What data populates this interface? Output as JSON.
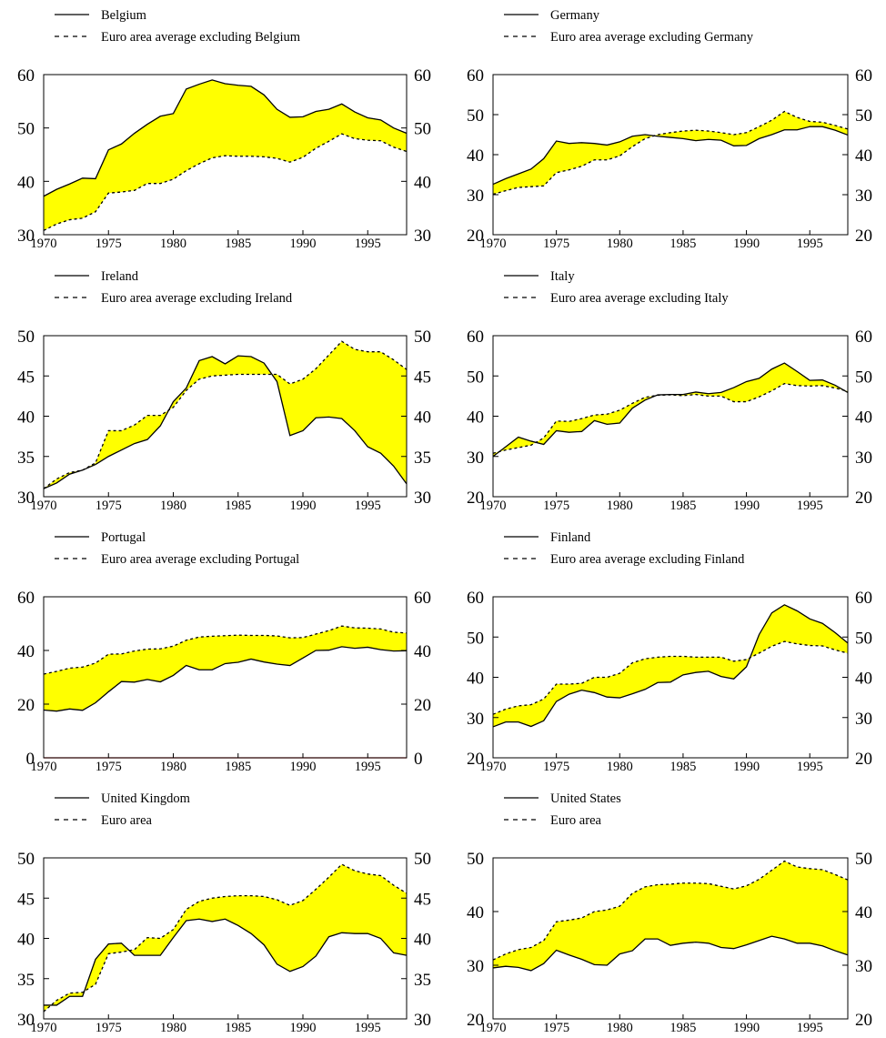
{
  "chart_data": [
    {
      "type": "area",
      "series": [
        {
          "name": "Belgium",
          "style": "solid",
          "values": [
            37.2,
            38.5,
            39.5,
            40.6,
            40.5,
            45.9,
            47.0,
            49.0,
            50.7,
            52.2,
            52.7,
            57.3,
            58.2,
            59.0,
            58.3,
            58.0,
            57.8,
            56.2,
            53.5,
            52.0,
            52.1,
            53.1,
            53.5,
            54.5,
            53.0,
            51.9,
            51.5,
            50.0,
            49.0
          ]
        },
        {
          "name": "Euro area average excluding Belgium",
          "style": "dashed",
          "values": [
            30.8,
            32.0,
            32.8,
            33.1,
            34.3,
            37.8,
            38.0,
            38.3,
            39.6,
            39.6,
            40.4,
            42.0,
            43.3,
            44.4,
            44.8,
            44.7,
            44.7,
            44.6,
            44.3,
            43.6,
            44.5,
            46.2,
            47.5,
            48.9,
            48.0,
            47.7,
            47.6,
            46.4,
            45.6
          ]
        }
      ],
      "fill_color": "#ffff00",
      "xlim": [
        1970,
        1998
      ],
      "ylim": [
        30,
        60
      ],
      "yticks": [
        30,
        40,
        50,
        60
      ],
      "xticks": [
        1970,
        1975,
        1980,
        1985,
        1990,
        1995
      ]
    },
    {
      "type": "area",
      "series": [
        {
          "name": "Germany",
          "style": "solid",
          "values": [
            32.6,
            34.0,
            35.2,
            36.4,
            39.0,
            43.4,
            42.8,
            43.0,
            42.8,
            42.4,
            43.2,
            44.6,
            45.0,
            44.6,
            44.3,
            44.0,
            43.5,
            43.8,
            43.6,
            42.2,
            42.3,
            44.0,
            45.0,
            46.2,
            46.2,
            47.0,
            47.0,
            46.1,
            44.9
          ]
        },
        {
          "name": "Euro area average excluding Germany",
          "style": "dashed",
          "values": [
            30.1,
            31.0,
            31.8,
            32.0,
            32.2,
            35.5,
            36.2,
            37.1,
            38.7,
            38.7,
            39.7,
            42.0,
            44.0,
            45.0,
            45.5,
            45.9,
            46.1,
            45.9,
            45.5,
            45.0,
            45.5,
            47.0,
            48.6,
            50.8,
            49.3,
            48.3,
            48.1,
            47.3,
            46.4
          ]
        }
      ],
      "fill_color": "#ffff00",
      "xlim": [
        1970,
        1998
      ],
      "ylim": [
        20,
        60
      ],
      "yticks": [
        20,
        30,
        40,
        50,
        60
      ],
      "xticks": [
        1970,
        1975,
        1980,
        1985,
        1990,
        1995
      ]
    },
    {
      "type": "area",
      "series": [
        {
          "name": "Ireland",
          "style": "solid",
          "values": [
            31.0,
            31.7,
            32.8,
            33.3,
            34.0,
            35.0,
            35.8,
            36.6,
            37.1,
            38.8,
            41.8,
            43.5,
            46.9,
            47.4,
            46.5,
            47.5,
            47.4,
            46.6,
            44.3,
            37.6,
            38.2,
            39.8,
            39.9,
            39.7,
            38.2,
            36.2,
            35.4,
            33.8,
            31.6
          ]
        },
        {
          "name": "Euro area average excluding Ireland",
          "style": "dashed",
          "values": [
            31.0,
            32.2,
            33.0,
            33.3,
            34.2,
            38.2,
            38.2,
            38.9,
            40.1,
            40.1,
            41.1,
            43.2,
            44.6,
            45.0,
            45.1,
            45.2,
            45.2,
            45.2,
            45.2,
            44.0,
            44.6,
            45.9,
            47.6,
            49.3,
            48.3,
            48.0,
            48.0,
            47.0,
            45.8
          ]
        }
      ],
      "fill_color": "#ffff00",
      "xlim": [
        1970,
        1998
      ],
      "ylim": [
        30,
        50
      ],
      "yticks": [
        30,
        35,
        40,
        45,
        50
      ],
      "xticks": [
        1970,
        1975,
        1980,
        1985,
        1990,
        1995
      ]
    },
    {
      "type": "area",
      "series": [
        {
          "name": "Italy",
          "style": "solid",
          "values": [
            30.0,
            32.4,
            34.8,
            33.8,
            33.0,
            36.4,
            36.0,
            36.2,
            38.9,
            38.0,
            38.3,
            42.0,
            44.0,
            45.3,
            45.4,
            45.4,
            46.0,
            45.6,
            45.9,
            47.1,
            48.6,
            49.4,
            51.7,
            53.2,
            51.1,
            48.9,
            49.0,
            47.7,
            45.9
          ]
        },
        {
          "name": "Euro area average excluding Italy",
          "style": "dashed",
          "values": [
            30.8,
            31.6,
            32.2,
            32.8,
            34.6,
            38.8,
            38.7,
            39.4,
            40.3,
            40.5,
            41.5,
            43.2,
            44.7,
            45.2,
            45.3,
            45.1,
            45.4,
            45.0,
            45.0,
            43.6,
            43.6,
            44.8,
            46.3,
            48.1,
            47.6,
            47.5,
            47.6,
            47.0,
            46.2
          ]
        }
      ],
      "fill_color": "#ffff00",
      "xlim": [
        1970,
        1998
      ],
      "ylim": [
        20,
        60
      ],
      "yticks": [
        20,
        30,
        40,
        50,
        60
      ],
      "xticks": [
        1970,
        1975,
        1980,
        1985,
        1990,
        1995
      ]
    },
    {
      "type": "area",
      "series": [
        {
          "name": "Portugal",
          "style": "solid",
          "values": [
            17.8,
            17.4,
            18.2,
            17.7,
            20.5,
            24.6,
            28.4,
            28.2,
            29.2,
            28.3,
            30.7,
            34.4,
            32.8,
            32.8,
            35.1,
            35.6,
            36.8,
            35.7,
            34.9,
            34.4,
            37.2,
            40.0,
            40.1,
            41.4,
            40.8,
            41.2,
            40.3,
            39.8,
            39.9
          ]
        },
        {
          "name": "Euro area average excluding Portugal",
          "style": "dashed",
          "values": [
            31.2,
            32.2,
            33.4,
            33.8,
            35.3,
            38.6,
            38.7,
            39.8,
            40.5,
            40.6,
            41.6,
            43.8,
            45.0,
            45.3,
            45.5,
            45.7,
            45.6,
            45.6,
            45.4,
            44.7,
            44.8,
            46.1,
            47.4,
            49.1,
            48.4,
            48.3,
            48.0,
            46.8,
            46.5
          ]
        }
      ],
      "fill_color": "#ffff00",
      "xlim": [
        1970,
        1998
      ],
      "ylim": [
        0,
        60
      ],
      "yticks": [
        0,
        20,
        40,
        60
      ],
      "xticks": [
        1970,
        1975,
        1980,
        1985,
        1990,
        1995
      ]
    },
    {
      "type": "area",
      "series": [
        {
          "name": "Finland",
          "style": "solid",
          "values": [
            27.7,
            28.9,
            28.9,
            27.8,
            29.2,
            34.0,
            35.8,
            36.8,
            36.2,
            35.1,
            34.9,
            35.9,
            37.0,
            38.7,
            38.8,
            40.6,
            41.2,
            41.5,
            40.2,
            39.6,
            42.6,
            50.6,
            56.0,
            58.0,
            56.5,
            54.5,
            53.4,
            51.1,
            48.5
          ]
        },
        {
          "name": "Euro area average excluding Finland",
          "style": "dashed",
          "values": [
            30.8,
            32.1,
            32.9,
            33.2,
            34.6,
            38.3,
            38.3,
            38.5,
            40.0,
            40.0,
            41.0,
            43.6,
            44.6,
            45.0,
            45.2,
            45.2,
            45.0,
            45.0,
            45.0,
            44.0,
            44.4,
            46.0,
            47.7,
            48.9,
            48.3,
            47.9,
            47.8,
            46.8,
            46.0
          ]
        }
      ],
      "fill_color": "#ffff00",
      "xlim": [
        1970,
        1998
      ],
      "ylim": [
        20,
        60
      ],
      "yticks": [
        20,
        30,
        40,
        50,
        60
      ],
      "xticks": [
        1970,
        1975,
        1980,
        1985,
        1990,
        1995
      ]
    },
    {
      "type": "area",
      "series": [
        {
          "name": "United Kingdom",
          "style": "solid",
          "values": [
            31.7,
            31.7,
            32.8,
            32.8,
            37.4,
            39.3,
            39.4,
            37.9,
            37.9,
            37.9,
            40.1,
            42.2,
            42.4,
            42.1,
            42.4,
            41.6,
            40.6,
            39.2,
            36.8,
            35.9,
            36.5,
            37.8,
            40.2,
            40.7,
            40.6,
            40.6,
            40.0,
            38.2,
            37.9
          ]
        },
        {
          "name": "Euro area",
          "style": "dashed",
          "values": [
            30.9,
            32.3,
            33.2,
            33.3,
            34.3,
            38.1,
            38.3,
            38.6,
            40.1,
            40.0,
            41.1,
            43.6,
            44.6,
            45.0,
            45.2,
            45.3,
            45.3,
            45.2,
            44.8,
            44.1,
            44.7,
            46.1,
            47.6,
            49.2,
            48.4,
            48.0,
            47.8,
            46.6,
            45.6
          ]
        }
      ],
      "fill_color": "#ffff00",
      "xlim": [
        1970,
        1998
      ],
      "ylim": [
        30,
        50
      ],
      "yticks": [
        30,
        35,
        40,
        45,
        50
      ],
      "xticks": [
        1970,
        1975,
        1980,
        1985,
        1990,
        1995
      ]
    },
    {
      "type": "area",
      "series": [
        {
          "name": "United States",
          "style": "solid",
          "values": [
            29.5,
            29.8,
            29.6,
            29.0,
            30.3,
            32.8,
            31.9,
            31.1,
            30.1,
            30.0,
            32.1,
            32.7,
            34.9,
            34.9,
            33.7,
            34.1,
            34.3,
            34.1,
            33.3,
            33.1,
            33.8,
            34.6,
            35.4,
            34.9,
            34.1,
            34.1,
            33.6,
            32.7,
            31.9
          ]
        },
        {
          "name": "Euro area",
          "style": "dashed",
          "values": [
            31.0,
            32.1,
            32.9,
            33.3,
            34.6,
            38.1,
            38.4,
            38.8,
            40.0,
            40.3,
            41.0,
            43.4,
            44.6,
            45.0,
            45.1,
            45.3,
            45.3,
            45.2,
            44.7,
            44.2,
            44.8,
            46.0,
            47.7,
            49.4,
            48.3,
            48.0,
            47.8,
            46.9,
            45.9
          ]
        }
      ],
      "fill_color": "#ffff00",
      "xlim": [
        1970,
        1998
      ],
      "ylim": [
        20,
        50
      ],
      "yticks": [
        20,
        30,
        40,
        50
      ],
      "xticks": [
        1970,
        1975,
        1980,
        1985,
        1990,
        1995
      ]
    }
  ]
}
